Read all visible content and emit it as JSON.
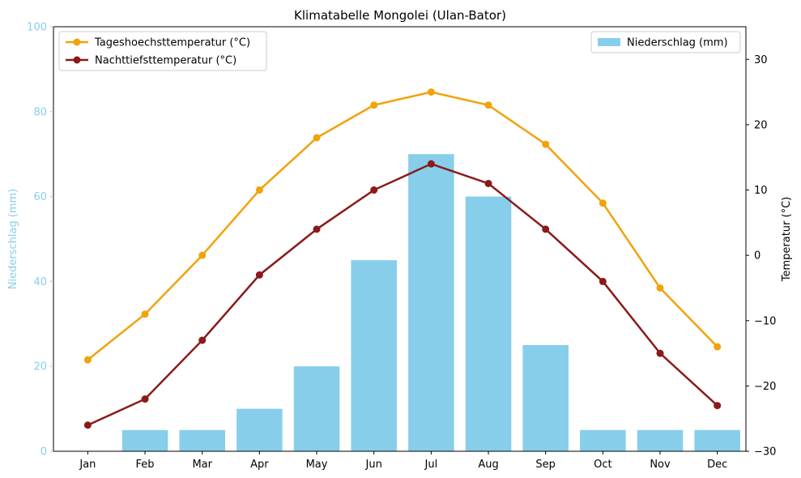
{
  "chart_data": {
    "type": "bar+line",
    "title": "Klimatabelle Mongolei (Ulan-Bator)",
    "categories": [
      "Jan",
      "Feb",
      "Mar",
      "Apr",
      "May",
      "Jun",
      "Jul",
      "Aug",
      "Sep",
      "Oct",
      "Nov",
      "Dec"
    ],
    "left_axis": {
      "label": "Niederschlag (mm)",
      "ylim": [
        0,
        100
      ],
      "ticks": [
        0,
        20,
        40,
        60,
        80,
        100
      ],
      "color": "#87ceeb"
    },
    "right_axis": {
      "label": "Temperatur (°C)",
      "ylim": [
        -30,
        35
      ],
      "ticks": [
        -30,
        -20,
        -10,
        0,
        10,
        20,
        30
      ]
    },
    "series": [
      {
        "name": "Niederschlag (mm)",
        "type": "bar",
        "axis": "left",
        "color": "#87ceeb",
        "values": [
          0,
          5,
          5,
          10,
          20,
          45,
          70,
          60,
          25,
          5,
          5,
          5
        ]
      },
      {
        "name": "Tageshoechsttemperatur (°C)",
        "type": "line",
        "axis": "right",
        "color": "#f2a20c",
        "values": [
          -16,
          -9,
          0,
          10,
          18,
          23,
          25,
          23,
          17,
          8,
          -5,
          -14
        ]
      },
      {
        "name": "Nachttiefsttemperatur (°C)",
        "type": "line",
        "axis": "right",
        "color": "#8b1a1a",
        "values": [
          -26,
          -22,
          -13,
          -3,
          4,
          10,
          14,
          11,
          4,
          -4,
          -15,
          -23
        ]
      }
    ],
    "legends": {
      "lines": "top-left",
      "bars": "top-right"
    },
    "grid": false
  }
}
